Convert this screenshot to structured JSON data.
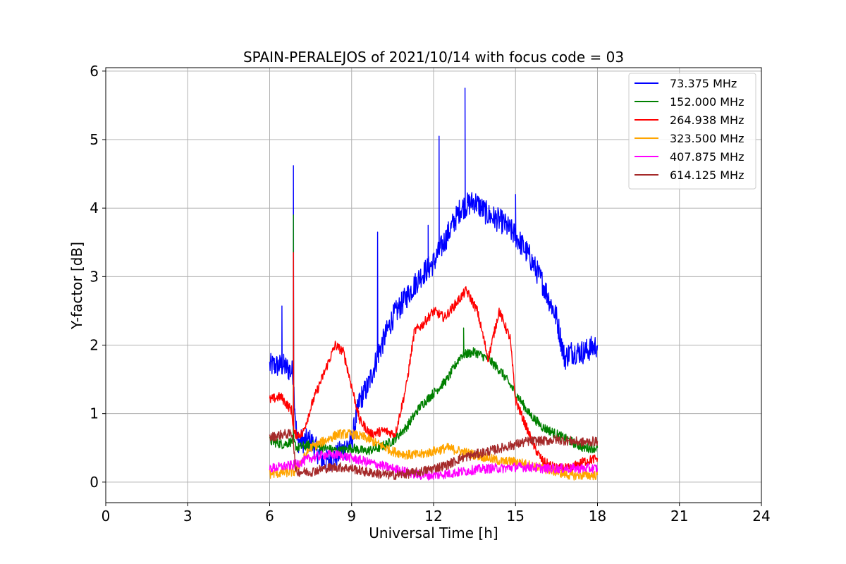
{
  "chart_data": {
    "type": "line",
    "title": "SPAIN-PERALEJOS of 2021/10/14 with focus code = 03",
    "xlabel": "Universal Time [h]",
    "ylabel": "Y-factor [dB]",
    "xlim": [
      0,
      24
    ],
    "ylim": [
      -0.3,
      6.05
    ],
    "xticks": [
      0,
      3,
      6,
      9,
      12,
      15,
      18,
      21,
      24
    ],
    "yticks": [
      0,
      1,
      2,
      3,
      4,
      5,
      6
    ],
    "grid": true,
    "legend_position": "top-right",
    "series": [
      {
        "name": " 73.375 MHz",
        "color": "#0000ff",
        "x": [
          6.0,
          6.5,
          6.85,
          7.0,
          7.5,
          8.0,
          8.5,
          9.0,
          9.3,
          9.6,
          10.0,
          10.5,
          11.0,
          11.5,
          12.0,
          12.5,
          13.0,
          13.5,
          14.0,
          14.5,
          15.0,
          15.5,
          16.0,
          16.5,
          16.8,
          17.0,
          17.5,
          18.0
        ],
        "y": [
          1.7,
          1.7,
          1.6,
          0.6,
          0.6,
          0.3,
          0.4,
          0.6,
          1.2,
          1.4,
          1.9,
          2.4,
          2.7,
          3.0,
          3.2,
          3.6,
          4.0,
          4.1,
          3.9,
          3.8,
          3.6,
          3.3,
          2.9,
          2.4,
          1.8,
          1.9,
          1.9,
          2.0
        ],
        "spikes": [
          {
            "x": 6.45,
            "y": 2.57
          },
          {
            "x": 6.87,
            "y": 4.62
          },
          {
            "x": 9.95,
            "y": 3.65
          },
          {
            "x": 11.8,
            "y": 3.75
          },
          {
            "x": 12.2,
            "y": 5.05
          },
          {
            "x": 13.15,
            "y": 5.75
          },
          {
            "x": 15.0,
            "y": 4.2
          }
        ]
      },
      {
        "name": "152.000 MHz",
        "color": "#008000",
        "x": [
          6.0,
          6.5,
          6.85,
          7.0,
          7.5,
          8.0,
          8.5,
          9.0,
          9.5,
          10.0,
          10.5,
          11.0,
          11.5,
          12.0,
          12.5,
          13.0,
          13.5,
          14.0,
          14.5,
          15.0,
          15.5,
          16.0,
          16.5,
          17.0,
          17.5,
          18.0
        ],
        "y": [
          0.6,
          0.55,
          0.6,
          0.5,
          0.55,
          0.5,
          0.45,
          0.5,
          0.45,
          0.5,
          0.6,
          0.8,
          1.1,
          1.3,
          1.5,
          1.85,
          1.9,
          1.8,
          1.6,
          1.3,
          1.0,
          0.8,
          0.7,
          0.6,
          0.5,
          0.5
        ],
        "spikes": [
          {
            "x": 6.87,
            "y": 3.9
          },
          {
            "x": 13.1,
            "y": 2.25
          }
        ]
      },
      {
        "name": "264.938 MHz",
        "color": "#ff0000",
        "x": [
          6.0,
          6.4,
          6.8,
          6.9,
          7.2,
          7.6,
          8.0,
          8.4,
          8.7,
          9.0,
          9.3,
          9.7,
          10.2,
          10.6,
          11.0,
          11.3,
          11.6,
          12.0,
          12.4,
          12.8,
          13.2,
          13.6,
          14.0,
          14.4,
          14.8,
          15.0,
          15.3,
          15.7,
          16.0,
          16.5,
          17.0,
          17.5,
          18.0
        ],
        "y": [
          1.2,
          1.25,
          1.05,
          0.7,
          0.7,
          1.2,
          1.6,
          2.0,
          1.9,
          1.4,
          0.9,
          0.7,
          0.75,
          0.7,
          1.4,
          2.2,
          2.3,
          2.5,
          2.4,
          2.6,
          2.8,
          2.5,
          1.8,
          2.5,
          2.1,
          1.2,
          0.9,
          0.5,
          0.3,
          0.2,
          0.2,
          0.3,
          0.35
        ],
        "spikes": [
          {
            "x": 6.87,
            "y": 3.35
          }
        ]
      },
      {
        "name": "323.500 MHz",
        "color": "#ffa500",
        "x": [
          6.0,
          6.9,
          7.5,
          8.0,
          8.5,
          9.0,
          9.5,
          10.0,
          10.5,
          11.0,
          11.5,
          12.0,
          12.5,
          13.0,
          13.5,
          14.0,
          14.5,
          15.0,
          15.5,
          16.0,
          16.5,
          17.0,
          17.5,
          18.0
        ],
        "y": [
          0.12,
          0.15,
          0.5,
          0.6,
          0.7,
          0.7,
          0.65,
          0.55,
          0.45,
          0.4,
          0.4,
          0.45,
          0.5,
          0.45,
          0.4,
          0.35,
          0.3,
          0.3,
          0.25,
          0.2,
          0.15,
          0.1,
          0.1,
          0.1
        ]
      },
      {
        "name": "407.875 MHz",
        "color": "#ff00ff",
        "x": [
          6.0,
          6.9,
          7.5,
          8.0,
          8.5,
          9.0,
          9.5,
          10.0,
          10.5,
          11.0,
          11.5,
          12.0,
          12.5,
          13.0,
          13.5,
          14.0,
          14.5,
          15.0,
          15.5,
          16.0,
          16.5,
          17.0,
          17.5,
          18.0
        ],
        "y": [
          0.2,
          0.25,
          0.35,
          0.4,
          0.4,
          0.35,
          0.3,
          0.25,
          0.2,
          0.15,
          0.1,
          0.1,
          0.12,
          0.15,
          0.18,
          0.2,
          0.2,
          0.22,
          0.22,
          0.2,
          0.2,
          0.2,
          0.2,
          0.2
        ]
      },
      {
        "name": "614.125 MHz",
        "color": "#a52a2a",
        "x": [
          6.0,
          6.5,
          6.85,
          6.95,
          7.5,
          8.0,
          8.5,
          9.0,
          9.5,
          10.0,
          10.5,
          11.0,
          11.5,
          12.0,
          12.5,
          13.0,
          13.5,
          14.0,
          14.5,
          15.0,
          15.5,
          16.0,
          16.5,
          17.0,
          17.5,
          18.0
        ],
        "y": [
          0.65,
          0.7,
          0.7,
          0.15,
          0.15,
          0.2,
          0.22,
          0.2,
          0.15,
          0.12,
          0.1,
          0.12,
          0.15,
          0.2,
          0.25,
          0.35,
          0.4,
          0.45,
          0.5,
          0.55,
          0.6,
          0.6,
          0.62,
          0.6,
          0.58,
          0.6
        ]
      }
    ]
  }
}
